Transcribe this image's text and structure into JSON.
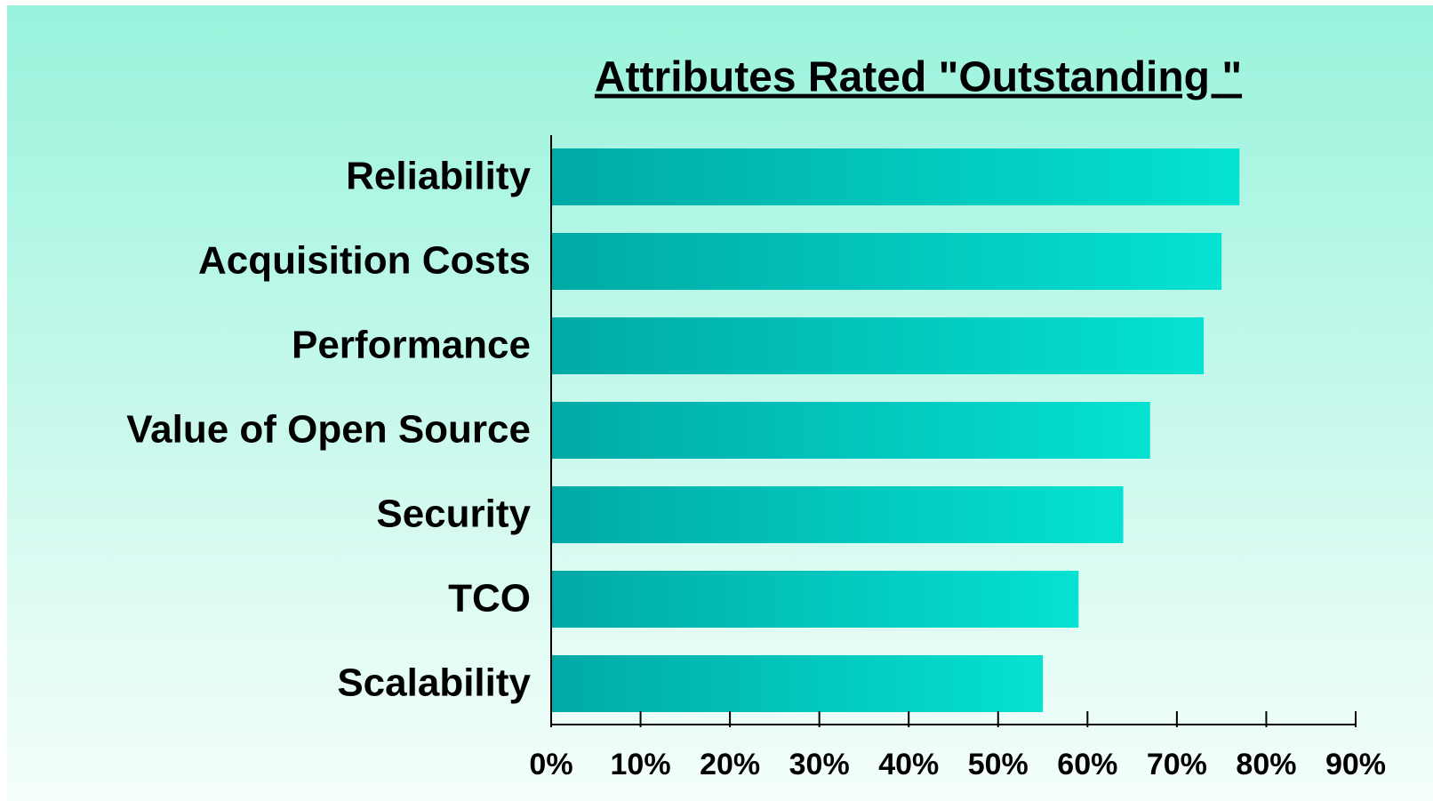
{
  "chart_data": {
    "type": "hbar",
    "title": "Attributes Rated \"Outstanding \"",
    "categories": [
      "Reliability",
      "Acquisition Costs",
      "Performance",
      "Value of Open Source",
      "Security",
      "TCO",
      "Scalability"
    ],
    "values": [
      77,
      75,
      73,
      67,
      64,
      59,
      55
    ],
    "gradient": [
      "#00a9a6",
      "#05e2d2"
    ],
    "xlim": [
      0,
      90
    ],
    "xticks": [
      {
        "value": 0,
        "label": "0%"
      },
      {
        "value": 10,
        "label": "10%"
      },
      {
        "value": 20,
        "label": "20%"
      },
      {
        "value": 30,
        "label": "30%"
      },
      {
        "value": 40,
        "label": "40%"
      },
      {
        "value": 50,
        "label": "50%"
      },
      {
        "value": 60,
        "label": "60%"
      },
      {
        "value": 70,
        "label": "70%"
      },
      {
        "value": 80,
        "label": "80%"
      },
      {
        "value": 90,
        "label": "90%"
      }
    ],
    "grid": false
  }
}
